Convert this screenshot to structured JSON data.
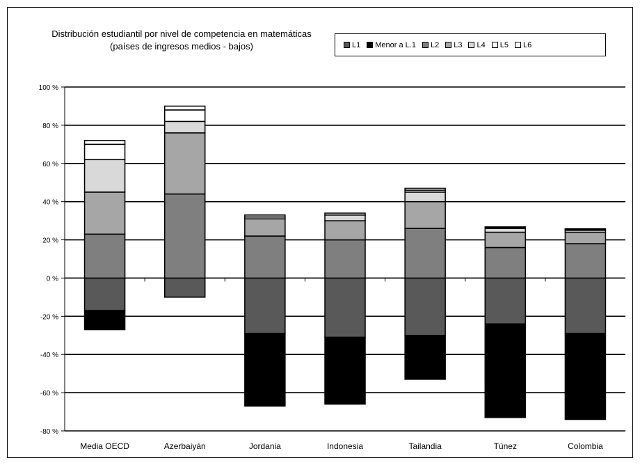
{
  "chart_data": {
    "type": "bar",
    "stacked": true,
    "title": "Distribución estudiantil por nivel de competencia en matemáticas",
    "subtitle": "(países de ingresos medios - bajos)",
    "categories": [
      "Media OECD",
      "Azerbaiyán",
      "Jordania",
      "Indonesia",
      "Tailandia",
      "Túnez",
      "Colombia"
    ],
    "ylim": [
      -80,
      100
    ],
    "yticks": [
      -80,
      -60,
      -40,
      -20,
      0,
      20,
      40,
      60,
      80,
      100
    ],
    "ytick_labels": [
      "-80 %",
      "-60 %",
      "-40 %",
      "-20 %",
      "0 %",
      "20 %",
      "40 %",
      "60 %",
      "80 %",
      "100 %"
    ],
    "grid": true,
    "legend_position": "top-right",
    "series": [
      {
        "name": "L1",
        "side": "negative",
        "color": "#595959",
        "values": [
          -17,
          -10,
          -29,
          -31,
          -30,
          -24,
          -29
        ]
      },
      {
        "name": "Menor a L.1",
        "side": "negative",
        "color": "#000000",
        "values": [
          -10,
          0,
          -38,
          -35,
          -23,
          -49,
          -45
        ]
      },
      {
        "name": "L2",
        "side": "positive",
        "color": "#7f7f7f",
        "values": [
          23,
          44,
          22,
          20,
          26,
          16,
          18
        ]
      },
      {
        "name": "L3",
        "side": "positive",
        "color": "#a6a6a6",
        "values": [
          22,
          32,
          9,
          10,
          14,
          8,
          6
        ]
      },
      {
        "name": "L4",
        "side": "positive",
        "color": "#d9d9d9",
        "values": [
          17,
          6,
          1,
          3,
          5,
          2,
          1
        ]
      },
      {
        "name": "L5",
        "side": "positive",
        "color": "#ffffff",
        "values": [
          8,
          6,
          0,
          0,
          1,
          0.5,
          0.5
        ]
      },
      {
        "name": "L6",
        "side": "positive",
        "color": "#ffffff",
        "values": [
          2,
          2,
          1,
          1,
          1,
          0.3,
          0.3
        ]
      }
    ]
  }
}
